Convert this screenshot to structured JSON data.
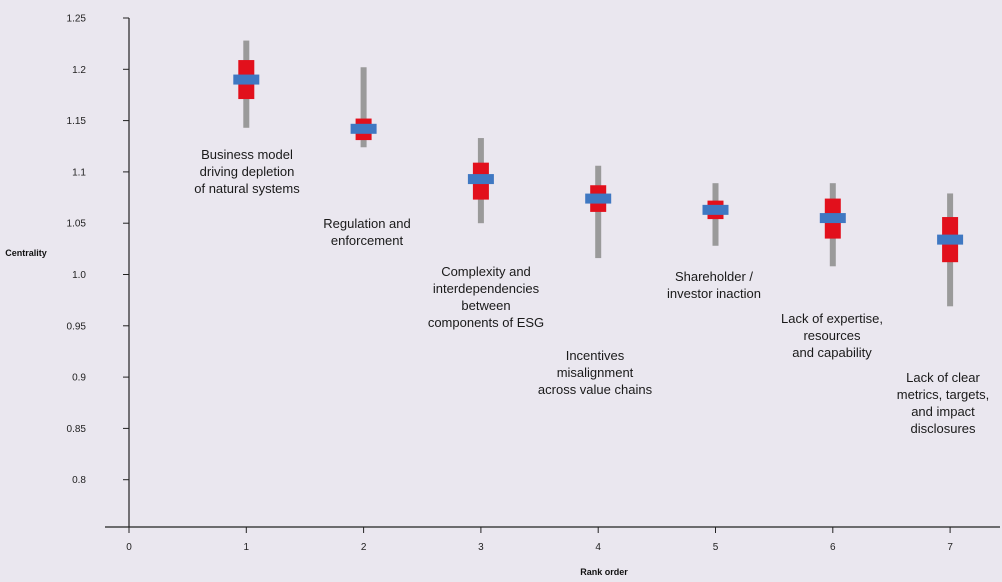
{
  "chart_data": {
    "type": "scatter",
    "xlabel": "Rank order",
    "ylabel": "Centrality",
    "xlim": [
      0,
      7
    ],
    "ylim": [
      0.75,
      1.25
    ],
    "x_ticks": [
      "0",
      "1",
      "2",
      "3",
      "4",
      "5",
      "6",
      "7"
    ],
    "y_ticks": [
      "1.25",
      "1.2",
      "1.15",
      "1.1",
      "1.05",
      "1.0",
      "0.95",
      "0.9",
      "0.85",
      "0.8"
    ],
    "grid": false,
    "colors": {
      "whisker": "#9a9a9a",
      "box": "#e2101c",
      "median": "#3f78c2",
      "axis": "#222222"
    },
    "points": [
      {
        "x": 1,
        "median": 1.19,
        "box": [
          1.171,
          1.209
        ],
        "whisker": [
          1.143,
          1.228
        ],
        "label": [
          "Business model",
          "driving depletion",
          "of natural systems"
        ]
      },
      {
        "x": 2,
        "median": 1.142,
        "box": [
          1.131,
          1.152
        ],
        "whisker": [
          1.124,
          1.202
        ],
        "label": [
          "Regulation and",
          "enforcement"
        ]
      },
      {
        "x": 3,
        "median": 1.093,
        "box": [
          1.073,
          1.109
        ],
        "whisker": [
          1.05,
          1.133
        ],
        "label": [
          "Complexity and",
          "interdependencies",
          "between",
          "components of ESG"
        ]
      },
      {
        "x": 4,
        "median": 1.074,
        "box": [
          1.061,
          1.087
        ],
        "whisker": [
          1.016,
          1.106
        ],
        "label": [
          "Incentives",
          "misalignment",
          "across value chains"
        ]
      },
      {
        "x": 5,
        "median": 1.063,
        "box": [
          1.054,
          1.072
        ],
        "whisker": [
          1.028,
          1.089
        ],
        "label": [
          "Shareholder /",
          "investor inaction"
        ]
      },
      {
        "x": 6,
        "median": 1.055,
        "box": [
          1.035,
          1.074
        ],
        "whisker": [
          1.008,
          1.089
        ],
        "label": [
          "Lack of expertise,",
          "resources",
          "and capability"
        ]
      },
      {
        "x": 7,
        "median": 1.034,
        "box": [
          1.012,
          1.056
        ],
        "whisker": [
          0.969,
          1.079
        ],
        "label": [
          "Lack of clear",
          "metrics, targets,",
          "and impact",
          "disclosures"
        ]
      }
    ]
  }
}
